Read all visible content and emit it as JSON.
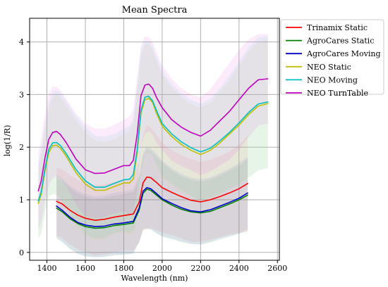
{
  "chart_data": {
    "type": "line",
    "title": "Mean Spectra",
    "xlabel": "Wavelength (nm)",
    "ylabel": "log(1/R)",
    "xlim": [
      1310,
      2610
    ],
    "ylim": [
      -0.15,
      4.45
    ],
    "xticks": [
      "1400",
      "1600",
      "1800",
      "2000",
      "2200",
      "2400",
      "2600"
    ],
    "yticks": [
      "0",
      "1",
      "2",
      "3",
      "4"
    ],
    "grid": true,
    "legend_position": "outside-top-right",
    "series": [
      {
        "name": "Trinamix Static",
        "color": "#ff0000",
        "band_color": "#ff6666",
        "x": [
          1450,
          1480,
          1520,
          1560,
          1600,
          1650,
          1700,
          1750,
          1800,
          1850,
          1880,
          1900,
          1920,
          1940,
          1970,
          2000,
          2050,
          2100,
          2150,
          2200,
          2250,
          2300,
          2350,
          2400,
          2445
        ],
        "y": [
          0.97,
          0.92,
          0.8,
          0.71,
          0.65,
          0.61,
          0.63,
          0.67,
          0.7,
          0.73,
          0.95,
          1.32,
          1.43,
          1.42,
          1.33,
          1.23,
          1.14,
          1.06,
          0.99,
          0.96,
          1.0,
          1.06,
          1.13,
          1.21,
          1.31
        ],
        "band_upper": [
          1.62,
          1.57,
          1.47,
          1.38,
          1.32,
          1.28,
          1.3,
          1.34,
          1.37,
          1.42,
          1.72,
          2.22,
          2.42,
          2.38,
          2.24,
          2.08,
          1.95,
          1.85,
          1.78,
          1.72,
          1.76,
          1.83,
          1.92,
          2.05,
          2.22
        ],
        "band_lower": [
          0.32,
          0.27,
          0.15,
          0.06,
          0.0,
          -0.06,
          -0.04,
          0.0,
          0.03,
          0.04,
          0.18,
          0.42,
          0.44,
          0.46,
          0.42,
          0.38,
          0.33,
          0.27,
          0.2,
          0.2,
          0.24,
          0.29,
          0.34,
          0.37,
          0.4
        ]
      },
      {
        "name": "AgroCares Static",
        "color": "#008000",
        "band_color": "#66bb66",
        "x": [
          1450,
          1480,
          1520,
          1560,
          1600,
          1650,
          1700,
          1750,
          1800,
          1850,
          1880,
          1900,
          1920,
          1940,
          1970,
          2000,
          2050,
          2100,
          2150,
          2200,
          2250,
          2300,
          2350,
          2400,
          2445
        ],
        "y": [
          0.84,
          0.77,
          0.64,
          0.55,
          0.49,
          0.46,
          0.47,
          0.51,
          0.53,
          0.56,
          0.8,
          1.12,
          1.2,
          1.18,
          1.09,
          1.0,
          0.9,
          0.82,
          0.77,
          0.75,
          0.78,
          0.85,
          0.92,
          1.0,
          1.09
        ],
        "band_upper": [
          1.42,
          1.35,
          1.22,
          1.12,
          1.06,
          1.02,
          1.03,
          1.08,
          1.11,
          1.15,
          1.42,
          1.82,
          1.95,
          1.93,
          1.82,
          1.7,
          1.56,
          1.45,
          1.38,
          1.35,
          1.38,
          1.46,
          1.55,
          1.65,
          1.78
        ],
        "band_lower": [
          0.26,
          0.19,
          0.06,
          -0.02,
          -0.08,
          -0.1,
          -0.09,
          -0.06,
          -0.05,
          -0.03,
          0.18,
          0.42,
          0.45,
          0.43,
          0.36,
          0.3,
          0.24,
          0.19,
          0.16,
          0.15,
          0.18,
          0.24,
          0.29,
          0.35,
          0.4
        ]
      },
      {
        "name": "AgroCares Moving",
        "color": "#0000cc",
        "band_color": "#6666dd",
        "x": [
          1450,
          1480,
          1520,
          1560,
          1600,
          1650,
          1700,
          1750,
          1800,
          1850,
          1880,
          1900,
          1920,
          1940,
          1970,
          2000,
          2050,
          2100,
          2150,
          2200,
          2250,
          2300,
          2350,
          2400,
          2445
        ],
        "y": [
          0.88,
          0.8,
          0.67,
          0.57,
          0.52,
          0.49,
          0.5,
          0.54,
          0.56,
          0.59,
          0.84,
          1.16,
          1.23,
          1.21,
          1.12,
          1.02,
          0.93,
          0.85,
          0.79,
          0.77,
          0.81,
          0.88,
          0.95,
          1.03,
          1.13
        ],
        "band_upper": [
          1.48,
          1.4,
          1.27,
          1.17,
          1.11,
          1.07,
          1.08,
          1.13,
          1.16,
          1.2,
          1.47,
          1.88,
          2.0,
          1.98,
          1.87,
          1.74,
          1.6,
          1.49,
          1.42,
          1.39,
          1.42,
          1.5,
          1.59,
          1.7,
          1.82
        ],
        "band_lower": [
          0.28,
          0.2,
          0.07,
          -0.03,
          -0.07,
          -0.09,
          -0.08,
          -0.05,
          -0.04,
          -0.02,
          0.21,
          0.44,
          0.46,
          0.44,
          0.37,
          0.3,
          0.26,
          0.21,
          0.16,
          0.15,
          0.2,
          0.26,
          0.31,
          0.36,
          0.44
        ]
      },
      {
        "name": "NEO Static",
        "color": "#bfbf00",
        "band_color": "#dada66",
        "x": [
          1355,
          1370,
          1390,
          1410,
          1430,
          1450,
          1470,
          1500,
          1550,
          1600,
          1650,
          1700,
          1750,
          1800,
          1830,
          1850,
          1870,
          1890,
          1910,
          1930,
          1950,
          1970,
          2000,
          2050,
          2100,
          2150,
          2200,
          2250,
          2300,
          2350,
          2400,
          2450,
          2500,
          2550
        ],
        "y": [
          0.93,
          1.1,
          1.55,
          1.9,
          2.03,
          2.04,
          1.98,
          1.83,
          1.52,
          1.3,
          1.18,
          1.18,
          1.25,
          1.32,
          1.32,
          1.4,
          1.9,
          2.65,
          2.9,
          2.93,
          2.85,
          2.65,
          2.4,
          2.2,
          2.05,
          1.94,
          1.86,
          1.94,
          2.08,
          2.25,
          2.42,
          2.62,
          2.78,
          2.83
        ],
        "band_upper": [
          1.6,
          1.85,
          2.35,
          2.75,
          2.95,
          3.0,
          2.95,
          2.8,
          2.52,
          2.28,
          2.13,
          2.1,
          2.15,
          2.25,
          2.3,
          2.45,
          3.1,
          3.75,
          3.95,
          3.95,
          3.85,
          3.65,
          3.38,
          3.12,
          2.95,
          2.82,
          2.75,
          2.85,
          3.05,
          3.28,
          3.55,
          3.82,
          4.0,
          4.05
        ],
        "band_lower": [
          0.26,
          0.35,
          0.75,
          1.05,
          1.11,
          1.08,
          1.01,
          0.86,
          0.52,
          0.32,
          0.23,
          0.26,
          0.35,
          0.39,
          0.34,
          0.35,
          0.7,
          1.55,
          1.85,
          1.91,
          1.85,
          1.65,
          1.42,
          1.28,
          1.15,
          1.06,
          0.97,
          1.03,
          1.11,
          1.22,
          1.29,
          1.42,
          1.56,
          1.61
        ]
      },
      {
        "name": "NEO Moving",
        "color": "#00bfbf",
        "band_color": "#66dada",
        "x": [
          1355,
          1370,
          1390,
          1410,
          1430,
          1450,
          1470,
          1500,
          1550,
          1600,
          1650,
          1700,
          1750,
          1800,
          1830,
          1850,
          1870,
          1890,
          1910,
          1930,
          1950,
          1970,
          2000,
          2050,
          2100,
          2150,
          2200,
          2250,
          2300,
          2350,
          2400,
          2450,
          2500,
          2550
        ],
        "y": [
          0.98,
          1.15,
          1.6,
          1.96,
          2.08,
          2.09,
          2.03,
          1.88,
          1.58,
          1.36,
          1.24,
          1.24,
          1.31,
          1.38,
          1.39,
          1.48,
          1.96,
          2.7,
          2.95,
          2.97,
          2.88,
          2.7,
          2.45,
          2.25,
          2.1,
          1.99,
          1.91,
          1.98,
          2.12,
          2.28,
          2.46,
          2.66,
          2.82,
          2.86
        ],
        "band_upper": [
          1.7,
          1.95,
          2.45,
          2.85,
          3.05,
          3.08,
          3.03,
          2.88,
          2.6,
          2.38,
          2.22,
          2.2,
          2.25,
          2.35,
          2.4,
          2.55,
          3.2,
          3.85,
          4.02,
          4.02,
          3.92,
          3.72,
          3.45,
          3.2,
          3.02,
          2.9,
          2.82,
          2.92,
          3.12,
          3.36,
          3.62,
          3.9,
          4.08,
          4.12
        ],
        "band_lower": [
          0.26,
          0.35,
          0.75,
          1.07,
          1.11,
          1.1,
          1.03,
          0.88,
          0.56,
          0.34,
          0.26,
          0.28,
          0.37,
          0.41,
          0.38,
          0.41,
          0.72,
          1.55,
          1.88,
          1.92,
          1.84,
          1.68,
          1.45,
          1.3,
          1.18,
          1.08,
          1.0,
          1.04,
          1.12,
          1.2,
          1.3,
          1.42,
          1.56,
          1.6
        ]
      },
      {
        "name": "NEO TurnTable",
        "color": "#bf00bf",
        "band_color": "#e066e0",
        "x": [
          1355,
          1370,
          1390,
          1410,
          1430,
          1450,
          1470,
          1500,
          1550,
          1600,
          1650,
          1700,
          1750,
          1800,
          1830,
          1850,
          1870,
          1890,
          1910,
          1930,
          1950,
          1970,
          2000,
          2050,
          2100,
          2150,
          2200,
          2250,
          2300,
          2350,
          2400,
          2450,
          2500,
          2550
        ],
        "y": [
          1.17,
          1.35,
          1.8,
          2.15,
          2.28,
          2.3,
          2.24,
          2.09,
          1.78,
          1.57,
          1.5,
          1.51,
          1.58,
          1.65,
          1.65,
          1.75,
          2.25,
          2.98,
          3.18,
          3.2,
          3.12,
          2.95,
          2.75,
          2.52,
          2.38,
          2.28,
          2.21,
          2.32,
          2.5,
          2.68,
          2.9,
          3.12,
          3.28,
          3.3
        ],
        "band_upper": [
          1.9,
          2.15,
          2.65,
          3.02,
          3.15,
          3.15,
          3.08,
          2.92,
          2.65,
          2.45,
          2.35,
          2.35,
          2.42,
          2.52,
          2.58,
          2.72,
          3.35,
          3.95,
          4.1,
          4.1,
          4.0,
          3.82,
          3.55,
          3.3,
          3.12,
          3.0,
          2.95,
          3.1,
          3.35,
          3.6,
          3.85,
          4.05,
          4.15,
          4.15
        ],
        "band_lower": [
          0.44,
          0.55,
          0.95,
          1.28,
          1.41,
          1.45,
          1.4,
          1.26,
          0.91,
          0.69,
          0.65,
          0.67,
          0.74,
          0.78,
          0.72,
          0.78,
          1.15,
          2.01,
          2.26,
          2.3,
          2.24,
          2.08,
          1.95,
          1.74,
          1.64,
          1.56,
          1.47,
          1.54,
          1.65,
          1.76,
          1.95,
          2.19,
          2.41,
          2.45
        ]
      }
    ]
  }
}
